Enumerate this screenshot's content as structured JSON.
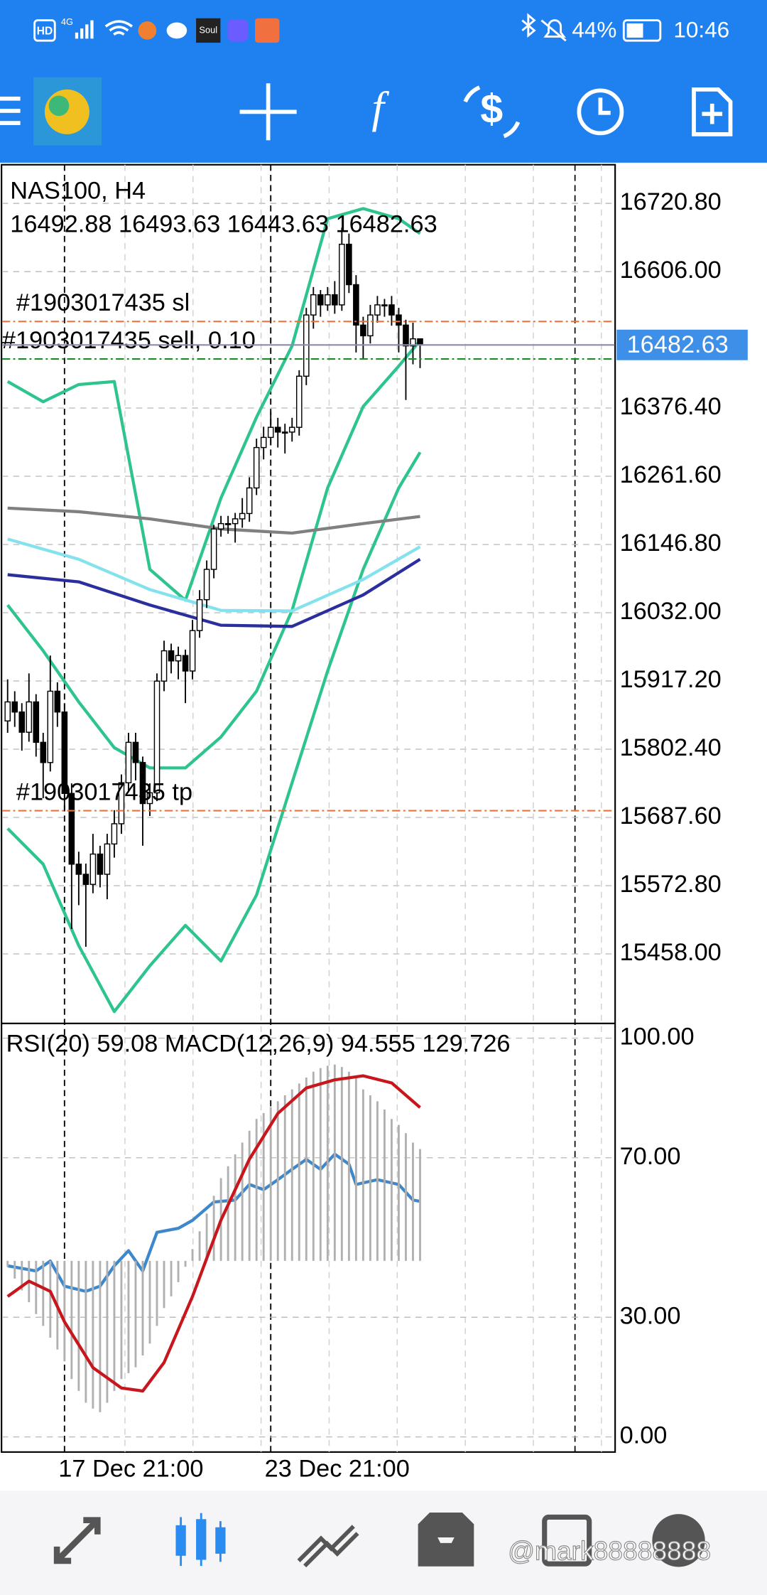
{
  "status_bar": {
    "left": [
      "HD",
      "4G"
    ],
    "app": "Soul",
    "battery": "44%",
    "time": "10:46"
  },
  "toolbar": {
    "indicator": "f"
  },
  "chart_data": [
    {
      "type": "candlestick",
      "title": "NAS100, H4",
      "categories": [
        null,
        null,
        null,
        null,
        null,
        null,
        null,
        null,
        "17 Dec 21:00",
        null,
        null,
        null,
        null,
        null,
        null,
        null,
        null,
        null,
        null,
        null,
        null,
        null,
        null,
        null,
        null,
        null,
        null,
        null,
        null,
        null,
        null,
        null,
        null,
        null,
        null,
        null,
        null,
        "23 Dec 21:00",
        null,
        null,
        null,
        null,
        null,
        null,
        null,
        null,
        null,
        null,
        null,
        null,
        null,
        null,
        null,
        null,
        null,
        null,
        null,
        null,
        null
      ],
      "open": [
        15850,
        15882,
        15865,
        15831,
        15882,
        15814,
        15780,
        15900,
        15865,
        15728,
        15609,
        15592,
        15575,
        15626,
        15592,
        15643,
        15677,
        15746,
        15814,
        15780,
        15711,
        15729,
        15917,
        15968,
        15951,
        15960,
        15934,
        16002,
        16054,
        16105,
        16173,
        16182,
        16182,
        16190,
        16199,
        16242,
        16310,
        16327,
        16344,
        16336,
        16336,
        16344,
        16430,
        16533,
        16567,
        16550,
        16567,
        16550,
        16652,
        16584,
        16516,
        16498,
        16533,
        16550,
        16550,
        16533,
        16516,
        16481,
        16492.88
      ],
      "high": [
        15920,
        15900,
        15880,
        15930,
        15895,
        15830,
        15960,
        15915,
        15880,
        15745,
        15630,
        15610,
        15660,
        15640,
        15660,
        15700,
        15760,
        15830,
        15830,
        15790,
        15745,
        15930,
        15985,
        15980,
        15975,
        15970,
        16020,
        16070,
        16120,
        16180,
        16195,
        16195,
        16200,
        16225,
        16260,
        16325,
        16345,
        16370,
        16360,
        16350,
        16360,
        16440,
        16545,
        16580,
        16575,
        16580,
        16590,
        16680,
        16670,
        16600,
        16530,
        16550,
        16565,
        16560,
        16565,
        16545,
        16525,
        16520,
        16493.63
      ],
      "low": [
        15830,
        15840,
        15800,
        15815,
        15790,
        15720,
        15765,
        15840,
        15700,
        15500,
        15540,
        15470,
        15560,
        15570,
        15550,
        15620,
        15660,
        15730,
        15750,
        15640,
        15690,
        15715,
        15900,
        15930,
        15920,
        15880,
        15920,
        15990,
        16040,
        16090,
        16160,
        16165,
        16150,
        16175,
        16185,
        16230,
        16290,
        16315,
        16310,
        16300,
        16320,
        16330,
        16415,
        16510,
        16530,
        16540,
        16535,
        16540,
        16570,
        16470,
        16460,
        16485,
        16520,
        16530,
        16515,
        16470,
        16390,
        16450,
        16443.63
      ],
      "close": [
        15882,
        15865,
        15831,
        15882,
        15814,
        15780,
        15900,
        15865,
        15728,
        15609,
        15592,
        15575,
        15626,
        15592,
        15643,
        15677,
        15746,
        15814,
        15780,
        15711,
        15729,
        15917,
        15968,
        15951,
        15960,
        15934,
        16002,
        16054,
        16105,
        16173,
        16182,
        16182,
        16190,
        16199,
        16242,
        16310,
        16327,
        16344,
        16336,
        16336,
        16344,
        16430,
        16533,
        16567,
        16550,
        16567,
        16550,
        16652,
        16584,
        16516,
        16498,
        16533,
        16550,
        16550,
        16533,
        16516,
        16481,
        16492.88,
        16482.63
      ],
      "candle_colors": {
        "up": "#ffffff",
        "down": "#000000",
        "outline": "#000000"
      },
      "ylim": [
        15343.6,
        16785.8
      ],
      "yticks": [
        {
          "value": 16720.8,
          "label": "16720.80"
        },
        {
          "value": 16606,
          "label": "16606.00"
        },
        {
          "value": 16376.4,
          "label": "16376.40"
        },
        {
          "value": 16261.6,
          "label": "16261.60"
        },
        {
          "value": 16146.8,
          "label": "16146.80"
        },
        {
          "value": 16032,
          "label": "16032.00"
        },
        {
          "value": 15917.2,
          "label": "15917.20"
        },
        {
          "value": 15802.4,
          "label": "15802.40"
        },
        {
          "value": 15687.6,
          "label": "15687.60"
        },
        {
          "value": 15572.8,
          "label": "15572.80"
        },
        {
          "value": 15458,
          "label": "15458.00"
        }
      ],
      "grid": true,
      "series": [
        {
          "color": "#2ec48e",
          "x": [
            0,
            5,
            10,
            15,
            20,
            25,
            30,
            35,
            40,
            45,
            50,
            55,
            58
          ],
          "values": [
            16421,
            16387,
            16416,
            16421,
            16105,
            16053,
            16225,
            16361,
            16481,
            16695,
            16712,
            16695,
            16670
          ]
        },
        {
          "color": "#2ec48e",
          "x": [
            0,
            5,
            10,
            15,
            20,
            25,
            30,
            35,
            40,
            45,
            50,
            55,
            58
          ],
          "values": [
            16045,
            15968,
            15882,
            15805,
            15771,
            15771,
            15823,
            15900,
            16036,
            16242,
            16379,
            16447,
            16490
          ]
        },
        {
          "color": "#2ec48e",
          "x": [
            0,
            5,
            10,
            15,
            20,
            25,
            30,
            35,
            40,
            45,
            50,
            55,
            58
          ],
          "values": [
            15669,
            15609,
            15472,
            15361,
            15438,
            15506,
            15446,
            15557,
            15746,
            15934,
            16105,
            16242,
            16302
          ]
        },
        {
          "color": "#808080",
          "x": [
            0,
            10,
            20,
            30,
            40,
            50,
            58
          ],
          "values": [
            16208,
            16202,
            16190,
            16173,
            16166,
            16182,
            16194
          ]
        },
        {
          "color": "#84e2ee",
          "x": [
            0,
            10,
            20,
            30,
            40,
            50,
            58
          ],
          "values": [
            16156,
            16122,
            16071,
            16036,
            16035,
            16088,
            16143
          ]
        },
        {
          "color": "#2b2f9e",
          "x": [
            0,
            10,
            20,
            30,
            40,
            50,
            58
          ],
          "values": [
            16096,
            16084,
            16045,
            16011,
            16009,
            16062,
            16122
          ]
        }
      ],
      "orders": [
        {
          "label": "#1903017435 sl",
          "value": 16522,
          "color": "#e8743b"
        },
        {
          "label": "#1903017435 sell, 0.10",
          "value": 16459,
          "color": "#1a8a2a"
        },
        {
          "label": "#1903017435 tp",
          "value": 15699,
          "color": "#e8743b"
        }
      ],
      "bid_color": "#8c8ca8",
      "price_tag_color": "#3d8fe8"
    },
    {
      "type": "line",
      "ylim": [
        -3.8,
        103.3
      ],
      "yticks": [
        {
          "value": 100,
          "label": "100.00"
        },
        {
          "value": 70,
          "label": "70.00"
        },
        {
          "value": 30,
          "label": "30.00"
        },
        {
          "value": 0,
          "label": "0.00"
        }
      ],
      "y2lim": [
        -161.7,
        199.5
      ],
      "grid": true,
      "series": [
        {
          "name": "RSI(20)",
          "color": "#3d87cc",
          "x": [
            0,
            4,
            6,
            8,
            11,
            13,
            15,
            17,
            19,
            21,
            24,
            26,
            29,
            32,
            34,
            36,
            38,
            40,
            42,
            44,
            46,
            48,
            49,
            52,
            55,
            57,
            58
          ],
          "values": [
            42.9,
            41.6,
            44.1,
            37.8,
            36.5,
            37.8,
            42.9,
            46.7,
            41.6,
            51.3,
            52.3,
            54.3,
            58.9,
            59.4,
            63.3,
            62.0,
            64.5,
            67.1,
            69.6,
            67.1,
            70.9,
            68.4,
            63.3,
            64.5,
            63.3,
            59.4,
            59.08
          ]
        },
        {
          "type": "bar",
          "axis": "y2",
          "color": "#b0b0b0",
          "values": [
            -5,
            -15,
            -25,
            -35,
            -45,
            -55,
            -65,
            -75,
            -85,
            -100,
            -110,
            -120,
            -125,
            -128,
            -120,
            -110,
            -100,
            -95,
            -90,
            -80,
            -70,
            -55,
            -40,
            -30,
            -18,
            -5,
            10,
            25,
            40,
            55,
            70,
            80,
            90,
            100,
            110,
            120,
            125,
            130,
            135,
            140,
            145,
            150,
            155,
            160,
            163,
            165,
            166,
            164,
            160,
            155,
            145,
            140,
            135,
            128,
            120,
            115,
            108,
            100,
            94.555
          ]
        },
        {
          "name": "MACD(12,26,9)",
          "axis": "y2",
          "color": "#c8161d",
          "x": [
            0,
            3,
            6,
            8,
            12,
            16,
            19,
            22,
            26,
            30,
            34,
            38,
            42,
            46,
            50,
            54,
            58
          ],
          "values": [
            -30.1,
            -17.2,
            -25.8,
            -51.6,
            -90.3,
            -107.5,
            -110.1,
            -86,
            -30.1,
            34.4,
            86,
            124.7,
            146.2,
            153.1,
            156.5,
            150.5,
            129.726
          ]
        }
      ]
    }
  ],
  "watermark": "@mark88888888"
}
